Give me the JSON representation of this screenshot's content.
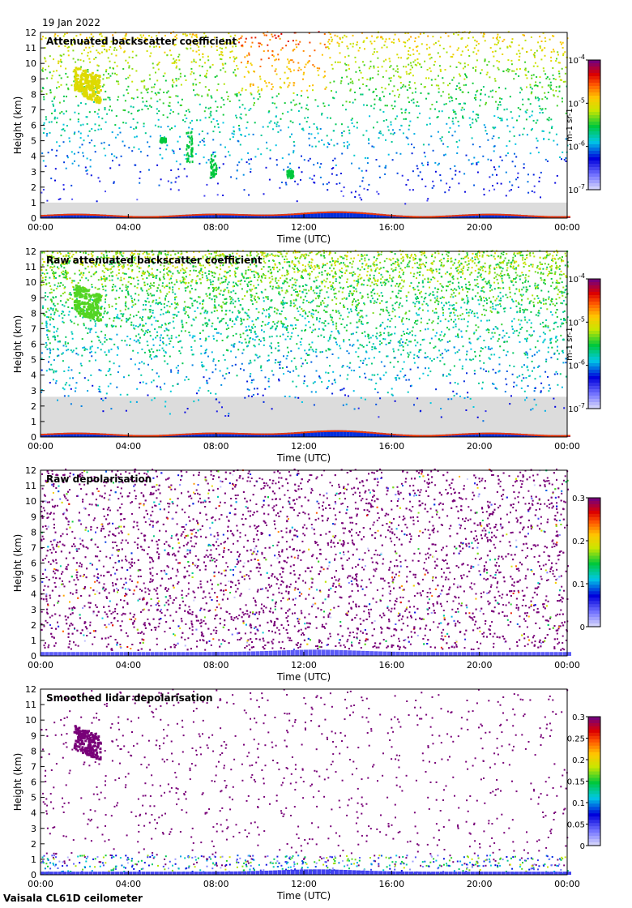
{
  "date": "19 Jan 2022",
  "instrument": "Vaisala CL61D ceilometer",
  "chart_data": [
    {
      "type": "heatmap",
      "title": "Attenuated backscatter coefficient",
      "xlabel": "Time (UTC)",
      "ylabel": "Height (km)",
      "xticks": [
        "00:00",
        "04:00",
        "08:00",
        "12:00",
        "16:00",
        "20:00",
        "00:00"
      ],
      "yticks": [
        "0",
        "1",
        "2",
        "3",
        "4",
        "5",
        "6",
        "7",
        "8",
        "9",
        "10",
        "11",
        "12"
      ],
      "ylim": [
        0,
        12
      ],
      "xlim_hours": [
        0,
        24
      ],
      "colorbar": {
        "scale": "log",
        "range": [
          1e-07,
          0.0001
        ],
        "ticks": [
          "10",
          "10",
          "10",
          "10"
        ],
        "tick_exponents": [
          "-7",
          "-6",
          "-5",
          "-4"
        ],
        "label": "m-1 sr-1"
      },
      "features": [
        {
          "kind": "cirrus",
          "start_h": 1.5,
          "end_h": 2.8,
          "base_km": 7.8,
          "top_km": 10.0
        },
        {
          "kind": "virga",
          "time_h": 6.6,
          "base_km": 3.5,
          "top_km": 5.5
        },
        {
          "kind": "virga",
          "time_h": 7.7,
          "base_km": 2.5,
          "top_km": 4.0
        },
        {
          "kind": "boundary_layer",
          "start_h": 0,
          "end_h": 24,
          "top_km": 0.5
        }
      ]
    },
    {
      "type": "heatmap",
      "title": "Raw attenuated backscatter coefficient",
      "xlabel": "Time (UTC)",
      "ylabel": "Height (km)",
      "xticks": [
        "00:00",
        "04:00",
        "08:00",
        "12:00",
        "16:00",
        "20:00",
        "00:00"
      ],
      "yticks": [
        "0",
        "1",
        "2",
        "3",
        "4",
        "5",
        "6",
        "7",
        "8",
        "9",
        "10",
        "11",
        "12"
      ],
      "ylim": [
        0,
        12
      ],
      "xlim_hours": [
        0,
        24
      ],
      "colorbar": {
        "scale": "log",
        "range": [
          1e-07,
          0.0001
        ],
        "ticks": [
          "10",
          "10",
          "10",
          "10"
        ],
        "tick_exponents": [
          "-7",
          "-6",
          "-5",
          "-4"
        ],
        "label": "m-1 sr-1"
      }
    },
    {
      "type": "heatmap",
      "title": "Raw depolarisation",
      "xlabel": "Time (UTC)",
      "ylabel": "Height (km)",
      "xticks": [
        "00:00",
        "04:00",
        "08:00",
        "12:00",
        "16:00",
        "20:00",
        "00:00"
      ],
      "yticks": [
        "0",
        "1",
        "2",
        "3",
        "4",
        "5",
        "6",
        "7",
        "8",
        "9",
        "10",
        "11",
        "12"
      ],
      "ylim": [
        0,
        12
      ],
      "xlim_hours": [
        0,
        24
      ],
      "colorbar": {
        "scale": "linear",
        "range": [
          0,
          0.3
        ],
        "ticks": [
          "0",
          "0.1",
          "0.2",
          "0.3"
        ]
      }
    },
    {
      "type": "heatmap",
      "title": "Smoothed lidar depolarisation",
      "xlabel": "Time (UTC)",
      "ylabel": "Height (km)",
      "xticks": [
        "00:00",
        "04:00",
        "08:00",
        "12:00",
        "16:00",
        "20:00",
        "00:00"
      ],
      "yticks": [
        "0",
        "1",
        "2",
        "3",
        "4",
        "5",
        "6",
        "7",
        "8",
        "9",
        "10",
        "11",
        "12"
      ],
      "ylim": [
        0,
        12
      ],
      "xlim_hours": [
        0,
        24
      ],
      "colorbar": {
        "scale": "linear",
        "range": [
          0,
          0.3
        ],
        "ticks": [
          "0",
          "0.05",
          "0.1",
          "0.15",
          "0.2",
          "0.25",
          "0.3"
        ]
      }
    }
  ]
}
